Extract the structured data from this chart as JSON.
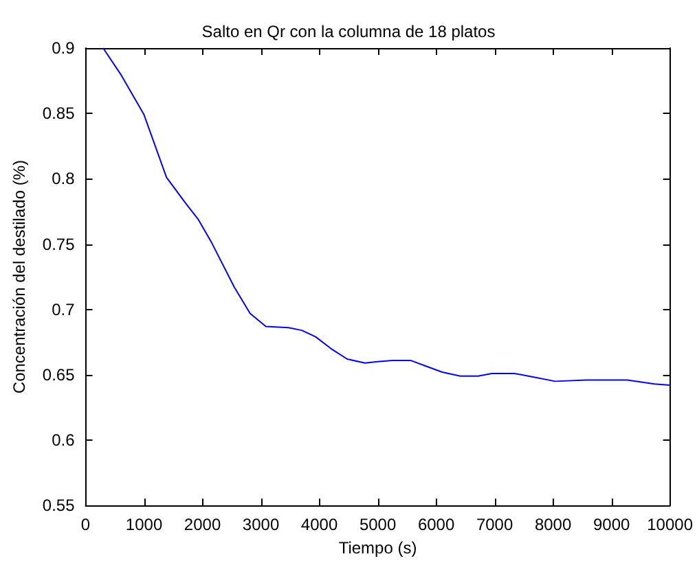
{
  "chart_data": {
    "type": "line",
    "title": "Salto en Qr con la columna de 18 platos",
    "xlabel": "Tiempo (s)",
    "ylabel": "Concentración del destilado (%)",
    "xlim": [
      0,
      10000
    ],
    "xticks": [
      0,
      1000,
      2000,
      3000,
      4000,
      5000,
      6000,
      7000,
      8000,
      9000,
      10000
    ],
    "ylim": [
      0.55,
      0.9
    ],
    "yticks": [
      0.55,
      0.6,
      0.65,
      0.7,
      0.75,
      0.8,
      0.85,
      0.9
    ],
    "grid": false,
    "marker": "none",
    "line_style": "solid",
    "series": [
      {
        "color": "#0000ff",
        "x": [
          300,
          600,
          1000,
          1385,
          1700,
          1926,
          2158,
          2545,
          2815,
          3086,
          3473,
          3700,
          3937,
          4200,
          4478,
          4780,
          5000,
          5251,
          5561,
          5800,
          6102,
          6411,
          6720,
          6952,
          7339,
          7700,
          8035,
          8573,
          9269,
          9733,
          10000
        ],
        "values": [
          0.9,
          0.88,
          0.849,
          0.801,
          0.782,
          0.769,
          0.751,
          0.717,
          0.697,
          0.687,
          0.686,
          0.684,
          0.679,
          0.67,
          0.662,
          0.659,
          0.66,
          0.661,
          0.661,
          0.657,
          0.652,
          0.649,
          0.649,
          0.651,
          0.651,
          0.648,
          0.645,
          0.646,
          0.646,
          0.643,
          0.642
        ]
      }
    ]
  }
}
